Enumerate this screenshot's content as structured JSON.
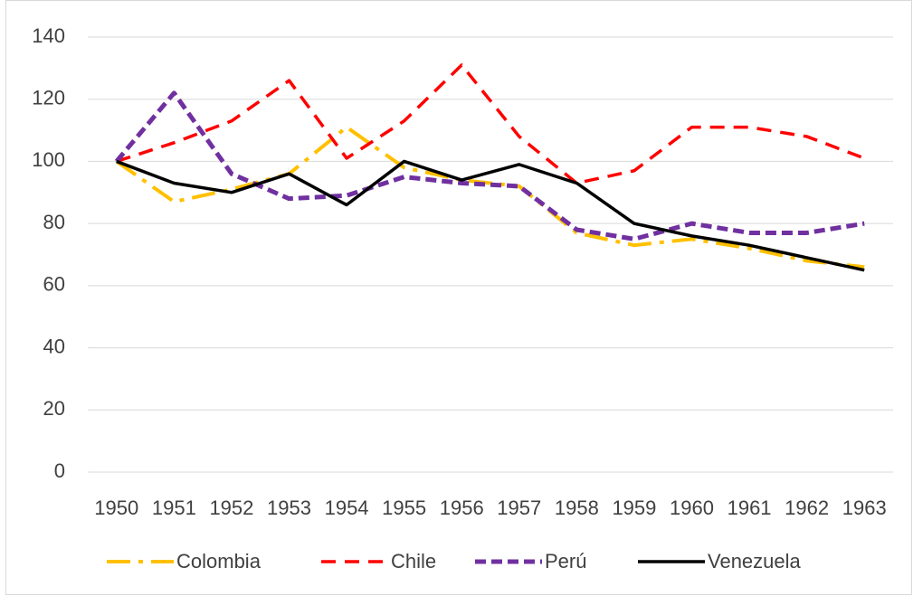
{
  "chart_data": {
    "type": "line",
    "categories": [
      "1950",
      "1951",
      "1952",
      "1953",
      "1954",
      "1955",
      "1956",
      "1957",
      "1958",
      "1959",
      "1960",
      "1961",
      "1962",
      "1963"
    ],
    "series": [
      {
        "name": "Colombia",
        "color": "#ffc000",
        "values": [
          100,
          87,
          91,
          96,
          111,
          98,
          94,
          92,
          77,
          73,
          75,
          72,
          68,
          66
        ]
      },
      {
        "name": "Chile",
        "color": "#ff0000",
        "values": [
          100,
          106,
          113,
          126,
          101,
          113,
          131,
          108,
          93,
          97,
          111,
          111,
          108,
          101
        ]
      },
      {
        "name": "Perú",
        "color": "#7030a0",
        "values": [
          100,
          122,
          96,
          88,
          89,
          95,
          93,
          92,
          78,
          75,
          80,
          77,
          77,
          80
        ]
      },
      {
        "name": "Venezuela",
        "color": "#000000",
        "values": [
          100,
          93,
          90,
          96,
          86,
          100,
          94,
          99,
          93,
          80,
          76,
          73,
          69,
          65
        ]
      }
    ],
    "ylim": [
      0,
      140
    ],
    "yticks": [
      0,
      20,
      40,
      60,
      80,
      100,
      120,
      140
    ],
    "grid": true,
    "legend": "bottom"
  }
}
